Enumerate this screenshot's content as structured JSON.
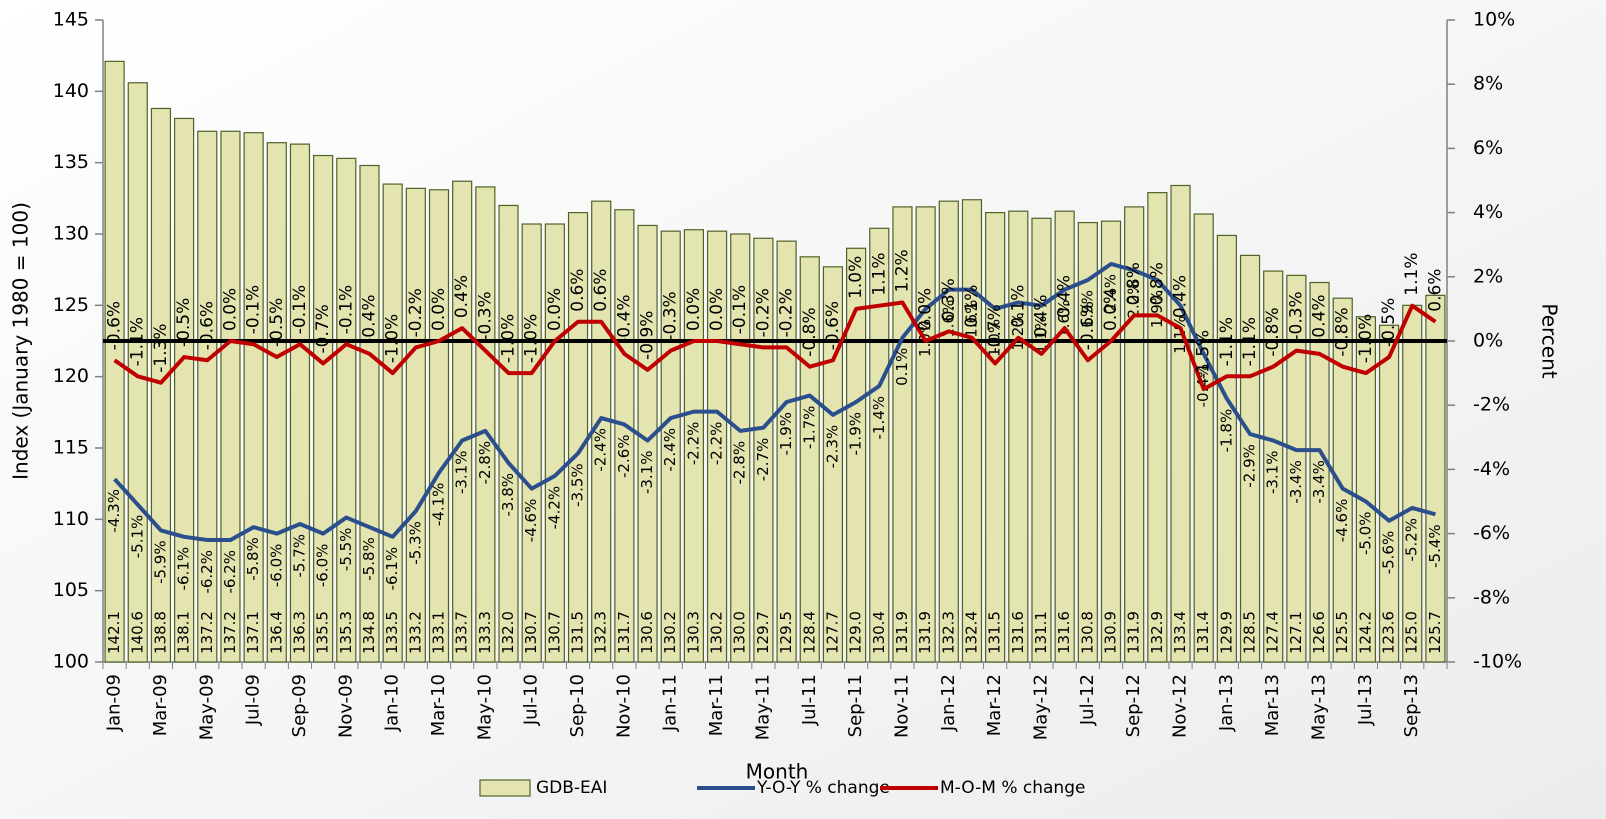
{
  "chart_data": {
    "type": "bar",
    "xlabel": "Month",
    "ylabel": "Index  (January 1980 = 100)",
    "y2label": "Percent",
    "categories": [
      "Jan-09",
      null,
      "Mar-09",
      null,
      "May-09",
      null,
      "Jul-09",
      null,
      "Sep-09",
      null,
      "Nov-09",
      null,
      "Jan-10",
      null,
      "Mar-10",
      null,
      "May-10",
      null,
      "Jul-10",
      null,
      "Sep-10",
      null,
      "Nov-10",
      null,
      "Jan-11",
      null,
      "Mar-11",
      null,
      "May-11",
      null,
      "Jul-11",
      null,
      "Sep-11",
      null,
      "Nov-11",
      null,
      "Jan-12",
      null,
      "Mar-12",
      null,
      "May-12",
      null,
      "Jul-12",
      null,
      "Sep-12",
      null,
      "Nov-12",
      null,
      "Jan-13",
      null,
      "Mar-13",
      null,
      "May-13",
      null,
      "Jul-13",
      null,
      "Sep-13",
      null
    ],
    "ylim": [
      100,
      145
    ],
    "yticks": [
      100,
      105,
      110,
      115,
      120,
      125,
      130,
      135,
      140,
      145
    ],
    "y2lim": [
      -10,
      10
    ],
    "y2ticks": [
      {
        "value": -10,
        "label": "-10%"
      },
      {
        "value": -8,
        "label": "-8%"
      },
      {
        "value": -6,
        "label": "-6%"
      },
      {
        "value": -4,
        "label": "-4%"
      },
      {
        "value": -2,
        "label": "-2%"
      },
      {
        "value": 0,
        "label": "0%"
      },
      {
        "value": 2,
        "label": "2%"
      },
      {
        "value": 4,
        "label": "4%"
      },
      {
        "value": 6,
        "label": "6%"
      },
      {
        "value": 8,
        "label": "8%"
      },
      {
        "value": 10,
        "label": "10%"
      }
    ],
    "series": [
      {
        "name": "GDB-EAI",
        "type": "bar",
        "color": "#e3e4b0",
        "edgecolor": "#4f6228",
        "values": [
          142.1,
          140.6,
          138.8,
          138.1,
          137.2,
          137.2,
          137.1,
          136.4,
          136.3,
          135.5,
          135.3,
          134.8,
          133.5,
          133.2,
          133.1,
          133.7,
          133.3,
          132.0,
          130.7,
          130.7,
          131.5,
          132.3,
          131.7,
          130.6,
          130.2,
          130.3,
          130.2,
          130.0,
          129.7,
          129.5,
          128.4,
          127.7,
          129.0,
          130.4,
          131.9,
          131.9,
          132.3,
          132.4,
          131.5,
          131.6,
          131.1,
          131.6,
          130.8,
          130.9,
          131.9,
          132.9,
          133.4,
          131.4,
          129.9,
          128.5,
          127.4,
          127.1,
          126.6,
          125.5,
          124.2,
          123.6,
          125.0,
          125.7
        ],
        "value_labels": [
          "142.1",
          "140.6",
          "138.8",
          "138.1",
          "137.2",
          "137.2",
          "137.1",
          "136.4",
          "136.3",
          "135.5",
          "135.3",
          "134.8",
          "133.5",
          "133.2",
          "133.1",
          "133.7",
          "133.3",
          "132.0",
          "130.7",
          "130.7",
          "131.5",
          "132.3",
          "131.7",
          "130.6",
          "130.2",
          "130.3",
          "130.2",
          "130.0",
          "129.7",
          "129.5",
          "128.4",
          "127.7",
          "129.0",
          "130.4",
          "131.9",
          "131.9",
          "132.3",
          "132.4",
          "131.5",
          "131.6",
          "131.1",
          "131.6",
          "130.8",
          "130.9",
          "131.9",
          "132.9",
          "133.4",
          "131.4",
          "129.9",
          "128.5",
          "127.4",
          "127.1",
          "126.6",
          "125.5",
          "124.2",
          "123.6",
          "125.0",
          "125.7"
        ]
      },
      {
        "name": "Y-O-Y % change",
        "type": "line",
        "axis": "y2",
        "color": "#2b4f8c",
        "label_side": "below",
        "values": [
          -4.3,
          -5.1,
          -5.9,
          -6.1,
          -6.2,
          -6.2,
          -5.8,
          -6.0,
          -5.7,
          -6.0,
          -5.5,
          -5.8,
          -6.1,
          -5.3,
          -4.1,
          -3.1,
          -2.8,
          -3.8,
          -4.6,
          -4.2,
          -3.5,
          -2.4,
          -2.6,
          -3.1,
          -2.4,
          -2.2,
          -2.2,
          -2.8,
          -2.7,
          -1.9,
          -1.7,
          -2.3,
          -1.9,
          -1.4,
          0.1,
          1.0,
          1.6,
          1.6,
          1.0,
          1.2,
          1.1,
          1.6,
          1.9,
          2.4,
          2.2,
          1.9,
          1.1,
          -0.4,
          -1.8,
          -2.9,
          -3.1,
          -3.4,
          -3.4,
          -4.6,
          -5.0,
          -5.6,
          -5.2,
          -5.4
        ],
        "value_labels": [
          "-4.3%",
          "-5.1%",
          "-5.9%",
          "-6.1%",
          "-6.2%",
          "-6.2%",
          "-5.8%",
          "-6.0%",
          "-5.7%",
          "-6.0%",
          "-5.5%",
          "-5.8%",
          "-6.1%",
          "-5.3%",
          "-4.1%",
          "-3.1%",
          "-2.8%",
          "-3.8%",
          "-4.6%",
          "-4.2%",
          "-3.5%",
          "-2.4%",
          "-2.6%",
          "-3.1%",
          "-2.4%",
          "-2.2%",
          "-2.2%",
          "-2.8%",
          "-2.7%",
          "-1.9%",
          "-1.7%",
          "-2.3%",
          "-1.9%",
          "-1.4%",
          "0.1%",
          "1.0%",
          "1.6%",
          "1.6%",
          "1.0%",
          "1.2%",
          "1.1%",
          "1.6%",
          "1.9%",
          "2.4%",
          "2.2%",
          "1.9%",
          "1.1%",
          "-0.4%",
          "-1.8%",
          "-2.9%",
          "-3.1%",
          "-3.4%",
          "-3.4%",
          "-4.6%",
          "-5.0%",
          "-5.6%",
          "-5.2%",
          "-5.4%"
        ]
      },
      {
        "name": "M-O-M % change",
        "type": "line",
        "axis": "y2",
        "color": "#c00000",
        "label_side": "above",
        "values": [
          -0.6,
          -1.1,
          -1.3,
          -0.5,
          -0.6,
          0.0,
          -0.1,
          -0.5,
          -0.1,
          -0.7,
          -0.1,
          -0.4,
          -1.0,
          -0.2,
          0.0,
          0.4,
          -0.3,
          -1.0,
          -1.0,
          0.0,
          0.6,
          0.6,
          -0.4,
          -0.9,
          -0.3,
          0.0,
          0.0,
          -0.1,
          -0.2,
          -0.2,
          -0.8,
          -0.6,
          1.0,
          1.1,
          1.2,
          0.0,
          0.3,
          0.1,
          -0.7,
          0.1,
          -0.4,
          0.4,
          -0.6,
          0.0,
          0.8,
          0.8,
          0.4,
          -1.5,
          -1.1,
          -1.1,
          -0.8,
          -0.3,
          -0.4,
          -0.8,
          -1.0,
          -0.5,
          1.1,
          0.6
        ],
        "value_labels": [
          "-0.6%",
          "-1.1%",
          "-1.3%",
          "-0.5%",
          "-0.6%",
          "0.0%",
          "-0.1%",
          "-0.5%",
          "-0.1%",
          "-0.7%",
          "-0.1%",
          "-0.4%",
          "-1.0%",
          "-0.2%",
          "0.0%",
          "0.4%",
          "-0.3%",
          "-1.0%",
          "-1.0%",
          "0.0%",
          "0.6%",
          "0.6%",
          "-0.4%",
          "-0.9%",
          "-0.3%",
          "0.0%",
          "0.0%",
          "-0.1%",
          "-0.2%",
          "-0.2%",
          "-0.8%",
          "-0.6%",
          "1.0%",
          "1.1%",
          "1.2%",
          "0.0%",
          "0.3%",
          "0.1%",
          "-0.7%",
          "0.1%",
          "-0.4%",
          "0.4%",
          "-0.6%",
          "0.0%",
          "0.8%",
          "0.8%",
          "0.4%",
          "-1.5%",
          "-1.1%",
          "-1.1%",
          "-0.8%",
          "-0.3%",
          "-0.4%",
          "-0.8%",
          "-1.0%",
          "-0.5%",
          "1.1%",
          "0.6%"
        ]
      }
    ]
  }
}
